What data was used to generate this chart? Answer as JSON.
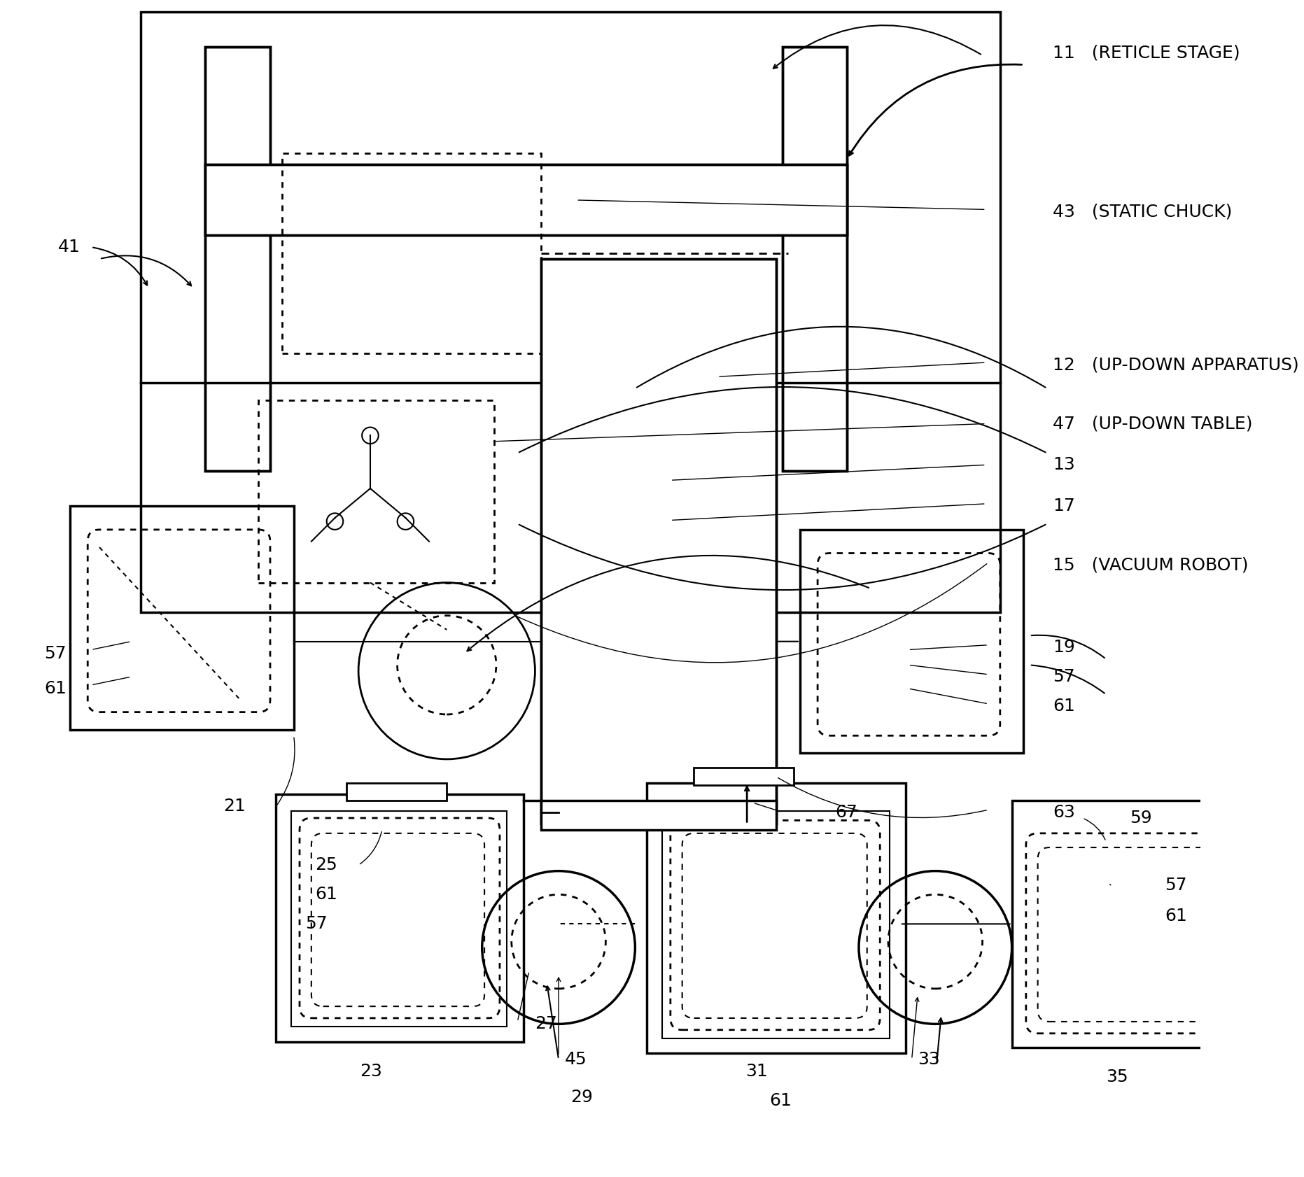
{
  "bg_color": "#ffffff",
  "title": "",
  "fig_width": 18.63,
  "fig_height": 16.82,
  "labels": {
    "11": [
      1.05,
      0.955,
      "(RETICLE STAGE)"
    ],
    "41": [
      0.055,
      0.76,
      "41"
    ],
    "43": [
      1.05,
      0.82,
      "(STATIC CHUCK)"
    ],
    "12": [
      1.05,
      0.68,
      "(UP-DOWN APPARATUS)"
    ],
    "47": [
      1.05,
      0.63,
      "(UP-DOWN TABLE)"
    ],
    "13": [
      0.88,
      0.575,
      "13"
    ],
    "17": [
      0.88,
      0.535,
      "17"
    ],
    "15": [
      1.05,
      0.495,
      "(VACUUM ROBOT)"
    ],
    "19": [
      0.88,
      0.43,
      "19"
    ],
    "57_top": [
      0.88,
      0.41,
      "57"
    ],
    "61_top": [
      0.88,
      0.385,
      "61"
    ],
    "63": [
      0.875,
      0.29,
      "63"
    ],
    "67": [
      0.655,
      0.295,
      "67"
    ],
    "57_left": [
      0.025,
      0.42,
      "57"
    ],
    "61_left": [
      0.025,
      0.39,
      "61"
    ],
    "21": [
      0.175,
      0.295,
      "21"
    ],
    "25": [
      0.26,
      0.245,
      "25"
    ],
    "61_mid": [
      0.265,
      0.22,
      "61"
    ],
    "57_mid": [
      0.255,
      0.195,
      "57"
    ],
    "23": [
      0.305,
      0.085,
      "23"
    ],
    "27": [
      0.44,
      0.12,
      "27"
    ],
    "45": [
      0.465,
      0.095,
      "45"
    ],
    "29": [
      0.47,
      0.065,
      "29"
    ],
    "59": [
      0.935,
      0.285,
      "59"
    ],
    "57_right": [
      0.965,
      0.225,
      "57"
    ],
    "61_right": [
      0.965,
      0.2,
      "61"
    ],
    "35": [
      0.93,
      0.075,
      "35"
    ],
    "31": [
      0.62,
      0.085,
      "31"
    ],
    "61_bot": [
      0.64,
      0.065,
      "61"
    ],
    "33": [
      0.76,
      0.095,
      "33"
    ]
  }
}
